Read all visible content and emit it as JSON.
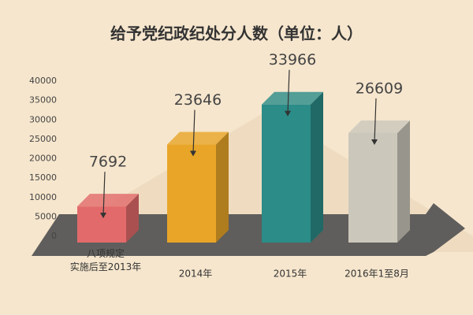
{
  "chart_data": {
    "type": "bar",
    "title": "给予党纪政纪处分人数（单位：人）",
    "categories": [
      "八项规定\n实施后至2013年",
      "2014年",
      "2015年",
      "2016年1至8月"
    ],
    "series": [
      {
        "name": null,
        "values": [
          7692,
          23646,
          33966,
          26609
        ]
      }
    ],
    "colors": [
      "#e26a6a",
      "#e9a528",
      "#2b8c88",
      "#cbc7bb"
    ],
    "ylim": [
      0,
      40000
    ],
    "yticks": [
      0,
      5000,
      10000,
      15000,
      20000,
      25000,
      30000,
      35000,
      40000
    ],
    "grid": false
  }
}
